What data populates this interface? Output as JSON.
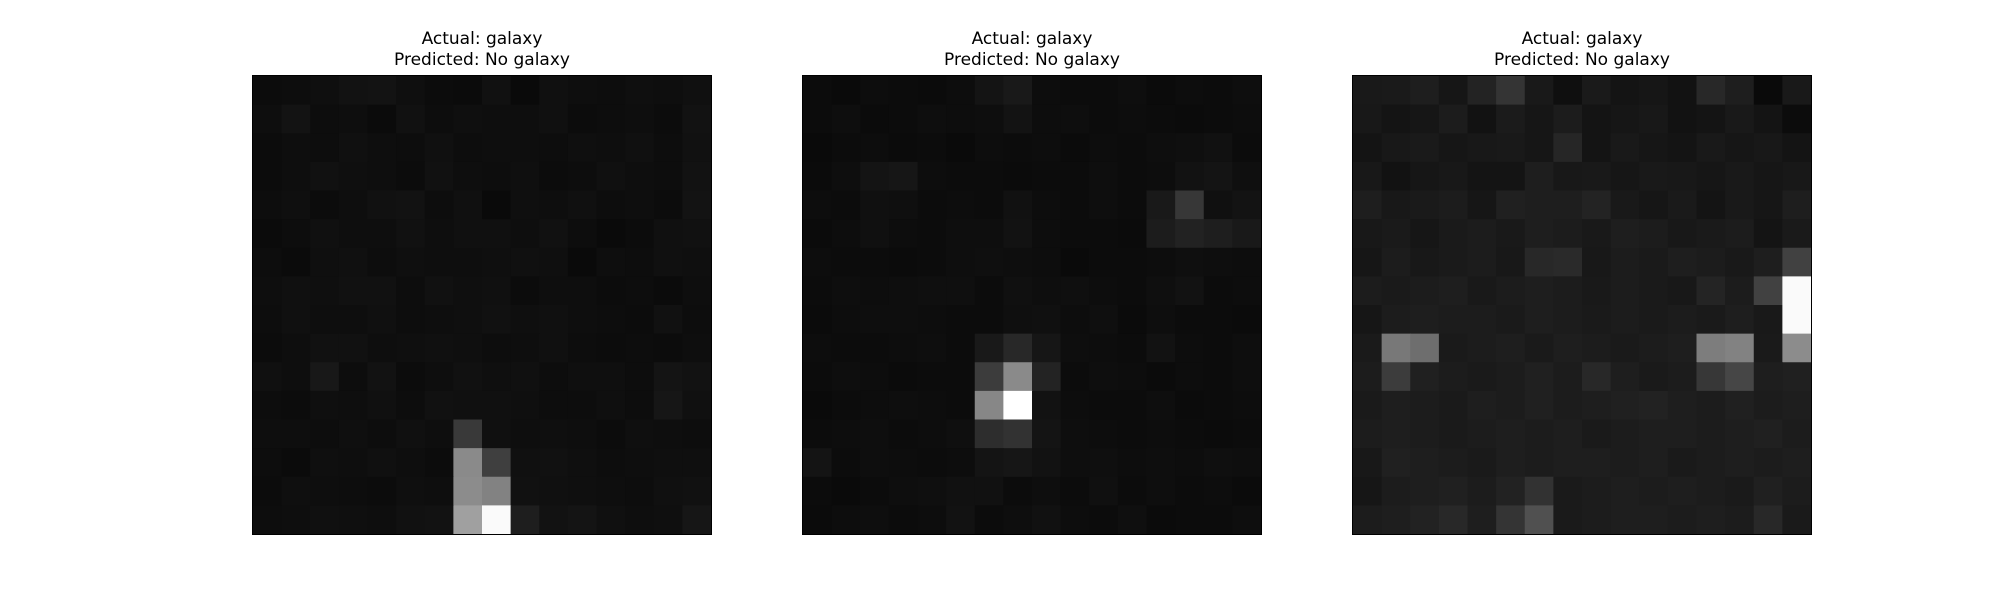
{
  "figure": {
    "background": "#ffffff",
    "colormap": "gray"
  },
  "chart_data": [
    {
      "type": "heatmap",
      "title": [
        "Actual: galaxy",
        "Predicted: No galaxy"
      ],
      "actual_label": "Actual: galaxy",
      "predicted_label": "Predicted: No galaxy",
      "grid": false,
      "axes_visible": false,
      "values": [
        [
          12,
          13,
          15,
          18,
          19,
          15,
          12,
          11,
          17,
          10,
          16,
          14,
          13,
          15,
          14,
          16
        ],
        [
          14,
          19,
          13,
          14,
          11,
          17,
          13,
          15,
          14,
          14,
          16,
          12,
          13,
          14,
          12,
          18
        ],
        [
          12,
          14,
          13,
          16,
          14,
          13,
          16,
          13,
          14,
          14,
          13,
          15,
          14,
          16,
          13,
          17
        ],
        [
          12,
          14,
          17,
          15,
          14,
          12,
          17,
          14,
          13,
          15,
          12,
          13,
          16,
          14,
          13,
          18
        ],
        [
          13,
          15,
          12,
          14,
          17,
          18,
          13,
          16,
          10,
          15,
          14,
          16,
          13,
          14,
          12,
          19
        ],
        [
          11,
          13,
          16,
          14,
          14,
          17,
          14,
          16,
          16,
          14,
          17,
          13,
          10,
          12,
          16,
          17
        ],
        [
          13,
          11,
          15,
          16,
          13,
          15,
          14,
          14,
          15,
          16,
          15,
          10,
          14,
          13,
          16,
          15
        ],
        [
          14,
          16,
          15,
          17,
          17,
          13,
          17,
          15,
          16,
          12,
          14,
          14,
          12,
          13,
          11,
          14
        ],
        [
          13,
          16,
          14,
          14,
          16,
          13,
          14,
          15,
          17,
          15,
          16,
          14,
          13,
          12,
          17,
          13
        ],
        [
          12,
          14,
          17,
          17,
          14,
          15,
          16,
          15,
          13,
          14,
          16,
          13,
          12,
          13,
          12,
          14
        ],
        [
          16,
          14,
          24,
          13,
          18,
          12,
          14,
          17,
          15,
          16,
          13,
          15,
          15,
          13,
          20,
          18
        ],
        [
          13,
          12,
          15,
          14,
          16,
          13,
          17,
          16,
          16,
          15,
          13,
          13,
          15,
          13,
          22,
          16
        ],
        [
          14,
          14,
          13,
          15,
          13,
          16,
          14,
          57,
          16,
          14,
          15,
          14,
          12,
          15,
          14,
          13
        ],
        [
          13,
          11,
          15,
          14,
          16,
          14,
          12,
          138,
          63,
          16,
          17,
          15,
          13,
          14,
          15,
          15
        ],
        [
          12,
          15,
          14,
          13,
          12,
          15,
          14,
          140,
          130,
          17,
          16,
          15,
          14,
          13,
          16,
          17
        ],
        [
          13,
          14,
          16,
          15,
          14,
          17,
          18,
          160,
          250,
          30,
          18,
          20,
          16,
          14,
          15,
          22
        ]
      ]
    },
    {
      "type": "heatmap",
      "title": [
        "Actual: galaxy",
        "Predicted: No galaxy"
      ],
      "actual_label": "Actual: galaxy",
      "predicted_label": "Predicted: No galaxy",
      "grid": false,
      "axes_visible": false,
      "values": [
        [
          12,
          10,
          13,
          12,
          11,
          13,
          20,
          25,
          13,
          12,
          12,
          14,
          11,
          13,
          12,
          14
        ],
        [
          12,
          14,
          11,
          12,
          14,
          13,
          14,
          19,
          13,
          14,
          12,
          13,
          12,
          11,
          12,
          13
        ],
        [
          10,
          12,
          13,
          11,
          12,
          10,
          13,
          12,
          13,
          11,
          13,
          12,
          14,
          15,
          17,
          12
        ],
        [
          11,
          14,
          20,
          22,
          13,
          12,
          12,
          11,
          12,
          12,
          14,
          12,
          13,
          18,
          20,
          15
        ],
        [
          13,
          12,
          16,
          15,
          12,
          13,
          12,
          17,
          13,
          12,
          14,
          12,
          25,
          55,
          16,
          19
        ],
        [
          11,
          13,
          16,
          13,
          12,
          14,
          14,
          18,
          13,
          12,
          12,
          11,
          28,
          34,
          30,
          25
        ],
        [
          13,
          12,
          12,
          11,
          12,
          14,
          15,
          14,
          13,
          10,
          12,
          12,
          13,
          15,
          14,
          13
        ],
        [
          12,
          14,
          13,
          14,
          15,
          15,
          12,
          16,
          14,
          15,
          13,
          12,
          15,
          18,
          12,
          13
        ],
        [
          11,
          13,
          14,
          14,
          13,
          12,
          12,
          15,
          16,
          13,
          15,
          11,
          14,
          12,
          12,
          11
        ],
        [
          13,
          12,
          12,
          13,
          14,
          12,
          25,
          40,
          22,
          14,
          13,
          12,
          18,
          13,
          12,
          14
        ],
        [
          12,
          14,
          13,
          11,
          12,
          12,
          60,
          138,
          35,
          12,
          14,
          13,
          11,
          13,
          12,
          14
        ],
        [
          10,
          12,
          13,
          14,
          13,
          12,
          135,
          255,
          18,
          13,
          12,
          12,
          14,
          11,
          12,
          13
        ],
        [
          12,
          13,
          14,
          12,
          13,
          15,
          45,
          50,
          20,
          14,
          13,
          12,
          13,
          12,
          11,
          12
        ],
        [
          20,
          12,
          14,
          13,
          12,
          13,
          20,
          22,
          18,
          14,
          15,
          13,
          14,
          13,
          15,
          14
        ],
        [
          12,
          10,
          12,
          14,
          15,
          17,
          17,
          12,
          14,
          12,
          16,
          12,
          14,
          12,
          13,
          11
        ],
        [
          11,
          13,
          14,
          12,
          13,
          18,
          12,
          14,
          17,
          13,
          12,
          15,
          11,
          12,
          12,
          14
        ]
      ]
    },
    {
      "type": "heatmap",
      "title": [
        "Actual: galaxy",
        "Predicted: No galaxy"
      ],
      "actual_label": "Actual: galaxy",
      "predicted_label": "Predicted: No galaxy",
      "grid": false,
      "axes_visible": false,
      "values": [
        [
          25,
          26,
          30,
          22,
          35,
          52,
          25,
          15,
          26,
          20,
          22,
          18,
          40,
          30,
          10,
          25
        ],
        [
          24,
          20,
          22,
          28,
          18,
          27,
          22,
          28,
          20,
          22,
          24,
          18,
          20,
          25,
          20,
          12
        ],
        [
          20,
          24,
          26,
          22,
          24,
          25,
          22,
          38,
          20,
          25,
          22,
          20,
          25,
          22,
          24,
          20
        ],
        [
          24,
          18,
          22,
          24,
          20,
          20,
          30,
          24,
          25,
          22,
          25,
          24,
          22,
          25,
          22,
          24
        ],
        [
          30,
          24,
          26,
          28,
          22,
          32,
          30,
          30,
          35,
          25,
          22,
          26,
          20,
          25,
          22,
          30
        ],
        [
          24,
          26,
          22,
          26,
          28,
          25,
          30,
          28,
          25,
          30,
          28,
          24,
          26,
          28,
          20,
          26
        ],
        [
          22,
          28,
          24,
          26,
          28,
          24,
          40,
          42,
          24,
          28,
          26,
          30,
          28,
          25,
          30,
          65
        ],
        [
          28,
          26,
          28,
          30,
          25,
          28,
          30,
          28,
          25,
          28,
          26,
          24,
          36,
          28,
          65,
          250
        ],
        [
          22,
          28,
          30,
          28,
          28,
          26,
          30,
          28,
          26,
          28,
          26,
          28,
          26,
          30,
          25,
          250
        ],
        [
          26,
          120,
          110,
          26,
          28,
          30,
          26,
          30,
          28,
          26,
          28,
          30,
          125,
          130,
          26,
          140
        ],
        [
          28,
          60,
          32,
          28,
          26,
          28,
          32,
          28,
          40,
          30,
          26,
          28,
          55,
          70,
          30,
          32
        ],
        [
          26,
          30,
          28,
          26,
          30,
          28,
          32,
          28,
          30,
          32,
          34,
          30,
          28,
          32,
          28,
          30
        ],
        [
          28,
          30,
          28,
          26,
          28,
          30,
          28,
          30,
          26,
          28,
          30,
          30,
          28,
          30,
          32,
          28
        ],
        [
          24,
          32,
          30,
          28,
          26,
          30,
          28,
          30,
          30,
          28,
          30,
          26,
          28,
          30,
          28,
          30
        ],
        [
          22,
          28,
          30,
          32,
          28,
          34,
          50,
          26,
          28,
          30,
          28,
          30,
          28,
          26,
          32,
          28
        ],
        [
          28,
          30,
          34,
          40,
          30,
          52,
          80,
          26,
          28,
          30,
          30,
          28,
          30,
          28,
          40,
          26
        ]
      ]
    }
  ]
}
